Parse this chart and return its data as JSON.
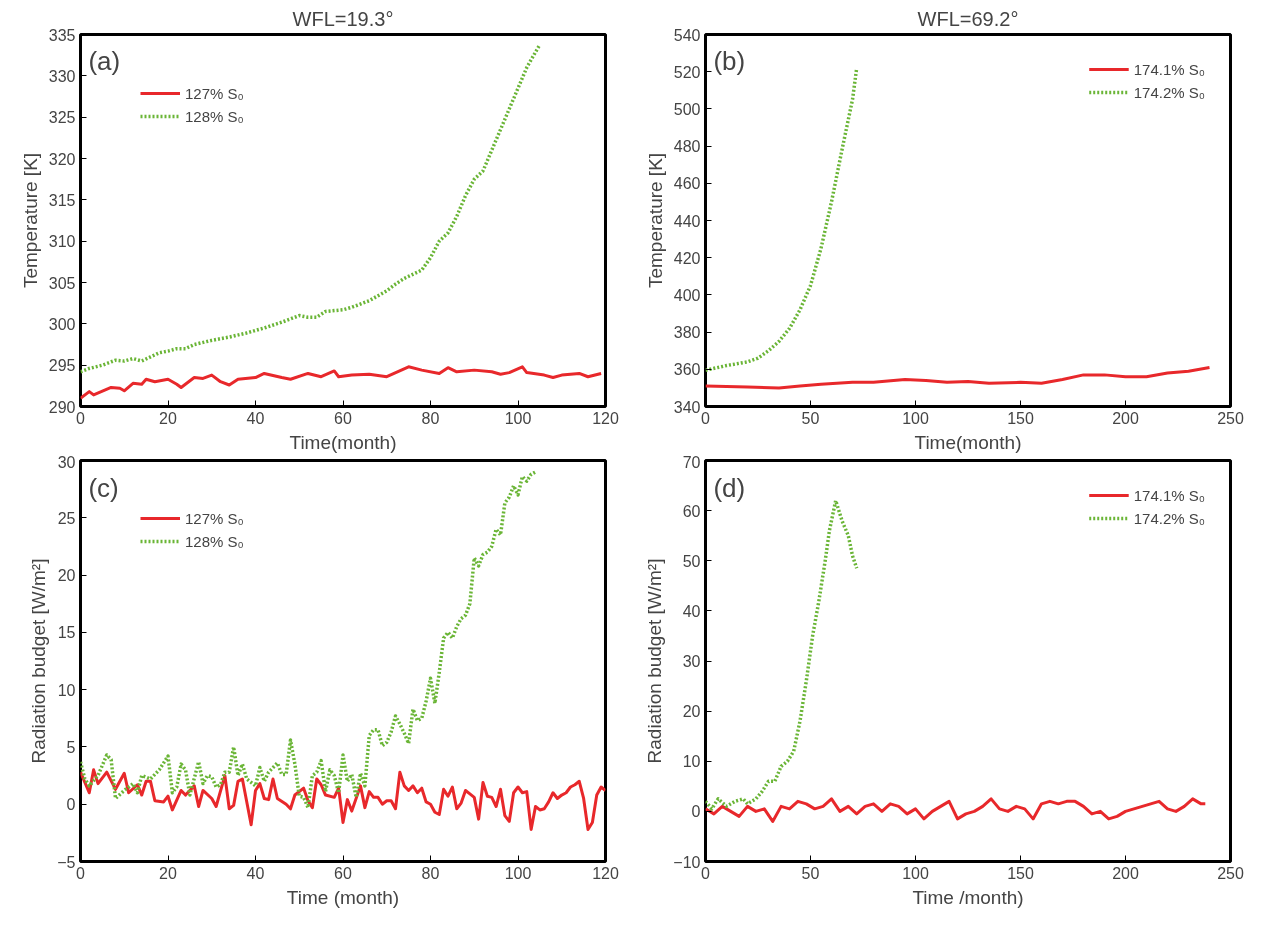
{
  "chart_data": [
    {
      "type": "line",
      "title": "WFL=19.3°",
      "xlabel": "Time(month)",
      "ylabel": "Temperature [K]",
      "annotations": [
        "(a)"
      ],
      "xlim": [
        0,
        120
      ],
      "ylim": [
        290,
        335
      ],
      "xticks": [
        0,
        20,
        40,
        60,
        80,
        100,
        120
      ],
      "yticks": [
        290,
        295,
        300,
        305,
        310,
        315,
        320,
        325,
        330,
        335
      ],
      "grid": false,
      "legend": "top left",
      "series": [
        {
          "name": "127% S₀",
          "color": "#e8282b",
          "line_style": "solid",
          "x": [
            0,
            2,
            3,
            7,
            9,
            10,
            12,
            14,
            15,
            17,
            20,
            22,
            23,
            26,
            28,
            30,
            32,
            34,
            36,
            40,
            42,
            46,
            48,
            52,
            55,
            58,
            59,
            62,
            66,
            70,
            75,
            78,
            82,
            84,
            86,
            90,
            94,
            96,
            98,
            101,
            102,
            106,
            108,
            110,
            114,
            116,
            119
          ],
          "values": [
            291,
            291.8,
            291.4,
            292.3,
            292.2,
            291.9,
            292.8,
            292.7,
            293.3,
            293.0,
            293.3,
            292.7,
            292.3,
            293.5,
            293.4,
            293.8,
            293.0,
            292.6,
            293.3,
            293.5,
            294.0,
            293.5,
            293.3,
            294.0,
            293.6,
            294.3,
            293.6,
            293.8,
            293.9,
            293.6,
            294.8,
            294.4,
            294.0,
            294.7,
            294.2,
            294.4,
            294.2,
            293.9,
            294.1,
            294.8,
            294.1,
            293.8,
            293.5,
            293.8,
            294.0,
            293.6,
            294.0
          ]
        },
        {
          "name": "128% S₀",
          "color": "#6ab536",
          "line_style": "dotted",
          "x": [
            0,
            2,
            5,
            8,
            10,
            12,
            14,
            16,
            18,
            20,
            22,
            24,
            26,
            30,
            34,
            38,
            42,
            46,
            50,
            52,
            54,
            56,
            60,
            62,
            66,
            70,
            72,
            74,
            78,
            80,
            82,
            84,
            86,
            88,
            90,
            92,
            94,
            96,
            98,
            100,
            102,
            105
          ],
          "values": [
            294.2,
            294.6,
            295.0,
            295.6,
            295.5,
            295.8,
            295.5,
            296.0,
            296.5,
            296.7,
            297.0,
            297.0,
            297.5,
            298.0,
            298.4,
            298.9,
            299.5,
            300.2,
            301.0,
            300.8,
            300.8,
            301.5,
            301.7,
            302.0,
            302.8,
            304.0,
            304.8,
            305.5,
            306.5,
            308.0,
            310.0,
            311.0,
            313.0,
            315.5,
            317.5,
            318.5,
            321.0,
            323.5,
            326.0,
            328.5,
            331.0,
            333.8
          ]
        }
      ]
    },
    {
      "type": "line",
      "title": "WFL=69.2°",
      "xlabel": "Time(month)",
      "ylabel": "Temperature [K]",
      "annotations": [
        "(b)"
      ],
      "xlim": [
        0,
        250
      ],
      "ylim": [
        340,
        540
      ],
      "xticks": [
        0,
        50,
        100,
        150,
        200,
        250
      ],
      "yticks": [
        340,
        360,
        380,
        400,
        420,
        440,
        460,
        480,
        500,
        520,
        540
      ],
      "grid": false,
      "legend": "top right",
      "series": [
        {
          "name": "174.1% S₀",
          "color": "#e8282b",
          "line_style": "solid",
          "x": [
            0,
            20,
            35,
            45,
            55,
            70,
            80,
            95,
            105,
            115,
            125,
            135,
            150,
            160,
            170,
            180,
            190,
            200,
            210,
            220,
            230,
            240
          ],
          "values": [
            351,
            350.5,
            350,
            351,
            352,
            353,
            353,
            354.5,
            354,
            353,
            353.5,
            352.5,
            353,
            352.5,
            354.5,
            357,
            357,
            356,
            356,
            358,
            359,
            361
          ]
        },
        {
          "name": "174.2% S₀",
          "color": "#6ab536",
          "line_style": "dotted",
          "x": [
            0,
            10,
            20,
            25,
            30,
            35,
            40,
            45,
            50,
            55,
            60,
            65,
            70,
            72
          ],
          "values": [
            359.5,
            362,
            364,
            366,
            370,
            375,
            382,
            392,
            405,
            425,
            450,
            478,
            505,
            522
          ]
        }
      ]
    },
    {
      "type": "line",
      "xlabel": "Time (month)",
      "ylabel": "Radiation budget [W/m²]",
      "annotations": [
        "(c)"
      ],
      "xlim": [
        0,
        120
      ],
      "ylim": [
        -5,
        30
      ],
      "xticks": [
        0,
        20,
        40,
        60,
        80,
        100,
        120
      ],
      "yticks": [
        -5,
        0,
        5,
        10,
        15,
        20,
        25,
        30
      ],
      "grid": false,
      "legend": "top left",
      "series": [
        {
          "name": "127% S₀",
          "color": "#e8282b",
          "line_style": "solid",
          "x": [
            0,
            2,
            3,
            4,
            6,
            8,
            10,
            11,
            13,
            14,
            15,
            16,
            17,
            19,
            20,
            21,
            23,
            24,
            26,
            27,
            28,
            30,
            31,
            33,
            34,
            35,
            36,
            37,
            39,
            40,
            41,
            42,
            43,
            44,
            45,
            47,
            48,
            49,
            51,
            52,
            53,
            54,
            55,
            56,
            58,
            59,
            60,
            61,
            62,
            64,
            65,
            66,
            67,
            68,
            69,
            70,
            71,
            72,
            73,
            74,
            75,
            76,
            77,
            78,
            79,
            80,
            81,
            82,
            83,
            84,
            85,
            86,
            87,
            88,
            89,
            90,
            91,
            92,
            93,
            94,
            95,
            96,
            97,
            98,
            99,
            100,
            101,
            102,
            103,
            104,
            105,
            106,
            107,
            108,
            109,
            110,
            111,
            112,
            113,
            114,
            115,
            116,
            117,
            118,
            119,
            120
          ],
          "values": [
            2.8,
            1,
            3,
            1.8,
            2.8,
            1.3,
            2.7,
            1,
            1.7,
            0.8,
            2,
            2,
            0.3,
            0.2,
            0.7,
            -0.5,
            1.2,
            0.8,
            1.6,
            -0.2,
            1.2,
            0.5,
            -0.2,
            2.5,
            -0.4,
            -0.1,
            2,
            2.2,
            -1.8,
            1.2,
            1.8,
            0.5,
            0.4,
            2.2,
            0.5,
            0,
            -0.4,
            0.8,
            1.4,
            0.3,
            -0.3,
            2.2,
            1.7,
            0.8,
            0.6,
            1.4,
            -1.6,
            0.4,
            -0.6,
            1.6,
            -0.3,
            1.1,
            0.6,
            0.6,
            0,
            0.3,
            0.3,
            -0.4,
            2.8,
            1.6,
            1.2,
            1.6,
            1,
            1.4,
            0.2,
            0,
            -0.7,
            -0.9,
            1.3,
            0.7,
            1.5,
            -0.4,
            0.1,
            1.2,
            0.9,
            0.6,
            -1.3,
            1.9,
            0.7,
            0.6,
            -0.2,
            1.3,
            -1,
            -1.5,
            1,
            1.5,
            1,
            1.1,
            -2.2,
            -0.2,
            -0.5,
            -0.4,
            0.2,
            1,
            0.5,
            0.8,
            1,
            1.5,
            1.7,
            2,
            0.5,
            -2.2,
            -1.6,
            0.8,
            1.5,
            1.2
          ]
        },
        {
          "name": "128% S₀",
          "color": "#6ab536",
          "line_style": "dotted",
          "x": [
            0,
            1,
            2,
            4,
            6,
            7,
            8,
            10,
            12,
            13,
            14,
            16,
            18,
            20,
            21,
            22,
            23,
            24,
            25,
            27,
            28,
            29,
            30,
            31,
            32,
            33,
            34,
            35,
            36,
            37,
            38,
            40,
            41,
            42,
            43,
            45,
            46,
            47,
            48,
            49,
            50,
            51,
            52,
            53,
            54,
            55,
            56,
            57,
            58,
            59,
            60,
            61,
            62,
            63,
            64,
            65,
            66,
            67,
            68,
            69,
            70,
            71,
            72,
            73,
            74,
            75,
            76,
            77,
            78,
            79,
            80,
            81,
            82,
            83,
            84,
            85,
            86,
            87,
            88,
            89,
            90,
            91,
            92,
            93,
            94,
            95,
            96,
            97,
            98,
            99,
            100,
            101,
            102,
            103,
            104
          ],
          "values": [
            3.7,
            2.2,
            1.6,
            2.5,
            4.3,
            3.9,
            0.5,
            1.2,
            1.8,
            1,
            2.5,
            2.2,
            3,
            4.2,
            1,
            1.5,
            3.5,
            3,
            0.8,
            3.7,
            1.8,
            2.5,
            2.4,
            1.5,
            1.7,
            2.8,
            2.8,
            5,
            2.5,
            3.5,
            2.2,
            1.6,
            3.2,
            2,
            2.8,
            3.6,
            2.6,
            2.6,
            5.6,
            3.5,
            0.7,
            0.6,
            -0.3,
            2.5,
            2.8,
            3.8,
            1.1,
            3,
            2.5,
            1,
            4.3,
            2,
            2.6,
            0.6,
            2.7,
            1.6,
            6,
            6.5,
            6.5,
            5.1,
            5.4,
            6.3,
            7.7,
            7,
            6.2,
            5.3,
            8.3,
            7.3,
            7.5,
            9,
            11,
            8.8,
            11.5,
            14.5,
            15,
            14.5,
            15.5,
            16.2,
            16.5,
            17.5,
            21.5,
            20.8,
            21.8,
            22,
            22.5,
            24,
            23.5,
            26.3,
            26.8,
            27.8,
            27,
            28.6,
            28.2,
            28.8,
            29
          ]
        }
      ]
    },
    {
      "type": "line",
      "xlabel": "Time /month)",
      "ylabel": "Radiation budget [W/m²]",
      "annotations": [
        "(d)"
      ],
      "xlim": [
        0,
        250
      ],
      "ylim": [
        -10,
        70
      ],
      "xticks": [
        0,
        50,
        100,
        150,
        200,
        250
      ],
      "yticks": [
        -10,
        0,
        10,
        20,
        30,
        40,
        50,
        60,
        70
      ],
      "grid": false,
      "legend": "top right",
      "series": [
        {
          "name": "174.1% S₀",
          "color": "#e8282b",
          "line_style": "solid",
          "x": [
            0,
            4,
            8,
            12,
            16,
            20,
            24,
            28,
            32,
            36,
            40,
            44,
            48,
            52,
            56,
            60,
            64,
            68,
            72,
            76,
            80,
            84,
            88,
            92,
            96,
            100,
            104,
            108,
            112,
            116,
            120,
            124,
            128,
            132,
            136,
            140,
            144,
            148,
            152,
            156,
            160,
            164,
            168,
            172,
            176,
            180,
            184,
            188,
            192,
            196,
            200,
            204,
            208,
            212,
            216,
            220,
            224,
            228,
            232,
            236,
            238
          ],
          "values": [
            0.5,
            -0.5,
            1,
            0,
            -1,
            1,
            0,
            0.5,
            -2,
            1,
            0.5,
            2,
            1.5,
            0.5,
            1,
            2.5,
            0,
            1,
            -0.5,
            1,
            1.5,
            0,
            1.5,
            1,
            -0.5,
            0.5,
            -1.5,
            0,
            1,
            2,
            -1.5,
            -0.5,
            0,
            1,
            2.5,
            0.5,
            0,
            1,
            0.5,
            -1.5,
            1.5,
            2,
            1.5,
            2,
            2,
            1,
            -0.5,
            0,
            -1.5,
            -1,
            0,
            0.5,
            1,
            1.5,
            2,
            0.5,
            0,
            1,
            2.5,
            1.5,
            1.5
          ]
        },
        {
          "name": "174.2% S₀",
          "color": "#6ab536",
          "line_style": "dotted",
          "x": [
            0,
            3,
            6,
            10,
            14,
            18,
            20,
            24,
            27,
            30,
            33,
            36,
            39,
            42,
            45,
            48,
            51,
            54,
            57,
            59,
            62,
            65,
            68,
            70,
            72
          ],
          "values": [
            2,
            0.5,
            2.5,
            1,
            2,
            2.5,
            1.5,
            2.5,
            4,
            6,
            6,
            9,
            10,
            12,
            18,
            26,
            35,
            42,
            50,
            56,
            62,
            58,
            55,
            51,
            48.5
          ]
        }
      ]
    }
  ]
}
